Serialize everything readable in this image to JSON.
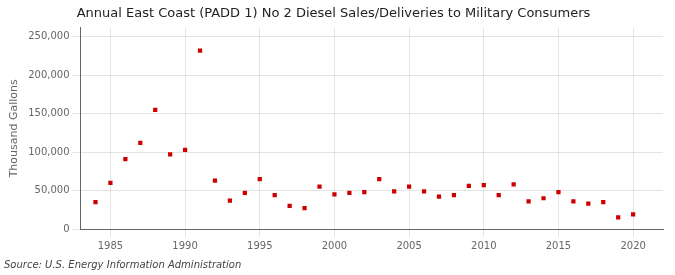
{
  "chart_data": {
    "type": "scatter",
    "title": "Annual East Coast (PADD 1) No 2 Diesel Sales/Deliveries to Military Consumers",
    "ylabel": "Thousand Gallons",
    "source": "Source: U.S. Energy Information Administration",
    "x": [
      1984,
      1985,
      1986,
      1987,
      1988,
      1989,
      1990,
      1991,
      1992,
      1993,
      1994,
      1995,
      1996,
      1997,
      1998,
      1999,
      2000,
      2001,
      2002,
      2003,
      2004,
      2005,
      2006,
      2007,
      2008,
      2009,
      2010,
      2011,
      2012,
      2013,
      2014,
      2015,
      2016,
      2017,
      2018,
      2019,
      2020
    ],
    "values": [
      35000,
      60000,
      91000,
      112000,
      155000,
      97000,
      103000,
      232000,
      63000,
      37000,
      47000,
      65000,
      44000,
      30000,
      27000,
      55000,
      45000,
      47000,
      48000,
      65000,
      49000,
      55000,
      49000,
      42000,
      44000,
      56000,
      57000,
      44000,
      58000,
      36000,
      40000,
      48000,
      36000,
      33000,
      35000,
      15000,
      19000
    ],
    "color": "#cc0000",
    "marker": "square",
    "xlim": [
      1983,
      2022
    ],
    "xticks": [
      1985,
      1990,
      1995,
      2000,
      2005,
      2010,
      2015,
      2020
    ],
    "ylim": [
      0,
      262000
    ],
    "yticks": [
      0,
      {
        "value": 50000,
        "label": "50,000"
      },
      {
        "value": 100000,
        "label": "100,000"
      },
      {
        "value": 150000,
        "label": "150,000"
      },
      {
        "value": 200000,
        "label": "200,000"
      },
      {
        "value": 250000,
        "label": "250,000"
      }
    ],
    "grid": true
  }
}
